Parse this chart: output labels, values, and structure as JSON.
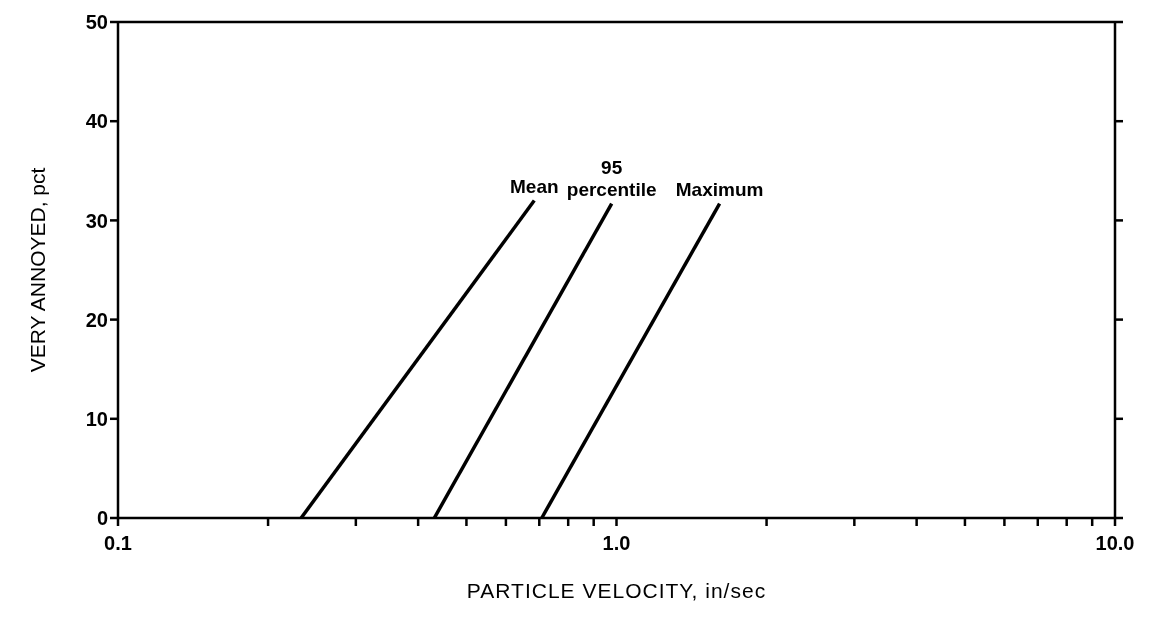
{
  "chart_data": {
    "type": "line",
    "xlabel": "PARTICLE VELOCITY, in/sec",
    "ylabel": "VERY ANNOYED,  pct",
    "log": "x",
    "marker": "none",
    "xlim": [
      0.1,
      10
    ],
    "xticks": [
      {
        "value": 0.1,
        "label": "0.1"
      },
      {
        "value": 0.2,
        "label": null
      },
      {
        "value": 0.3,
        "label": null
      },
      {
        "value": 0.4,
        "label": null
      },
      {
        "value": 0.5,
        "label": null
      },
      {
        "value": 0.6,
        "label": null
      },
      {
        "value": 0.7,
        "label": null
      },
      {
        "value": 0.8,
        "label": null
      },
      {
        "value": 0.9,
        "label": null
      },
      {
        "value": 1,
        "label": "1.0"
      },
      {
        "value": 2,
        "label": null
      },
      {
        "value": 3,
        "label": null
      },
      {
        "value": 4,
        "label": null
      },
      {
        "value": 5,
        "label": null
      },
      {
        "value": 6,
        "label": null
      },
      {
        "value": 7,
        "label": null
      },
      {
        "value": 8,
        "label": null
      },
      {
        "value": 9,
        "label": null
      },
      {
        "value": 10,
        "label": "10.0"
      }
    ],
    "ylim": [
      0,
      50
    ],
    "yticks": [
      0,
      10,
      20,
      30,
      40,
      50
    ],
    "series": [
      {
        "name": "Mean",
        "color": "#000000",
        "x": [
          0.233,
          0.684
        ],
        "values": [
          0,
          32
        ]
      },
      {
        "name": "95\npercentile",
        "color": "#000000",
        "x": [
          0.431,
          0.978
        ],
        "values": [
          0,
          31.7
        ]
      },
      {
        "name": "Maximum",
        "color": "#000000",
        "x": [
          0.708,
          1.61
        ],
        "values": [
          0,
          31.7
        ]
      }
    ]
  }
}
